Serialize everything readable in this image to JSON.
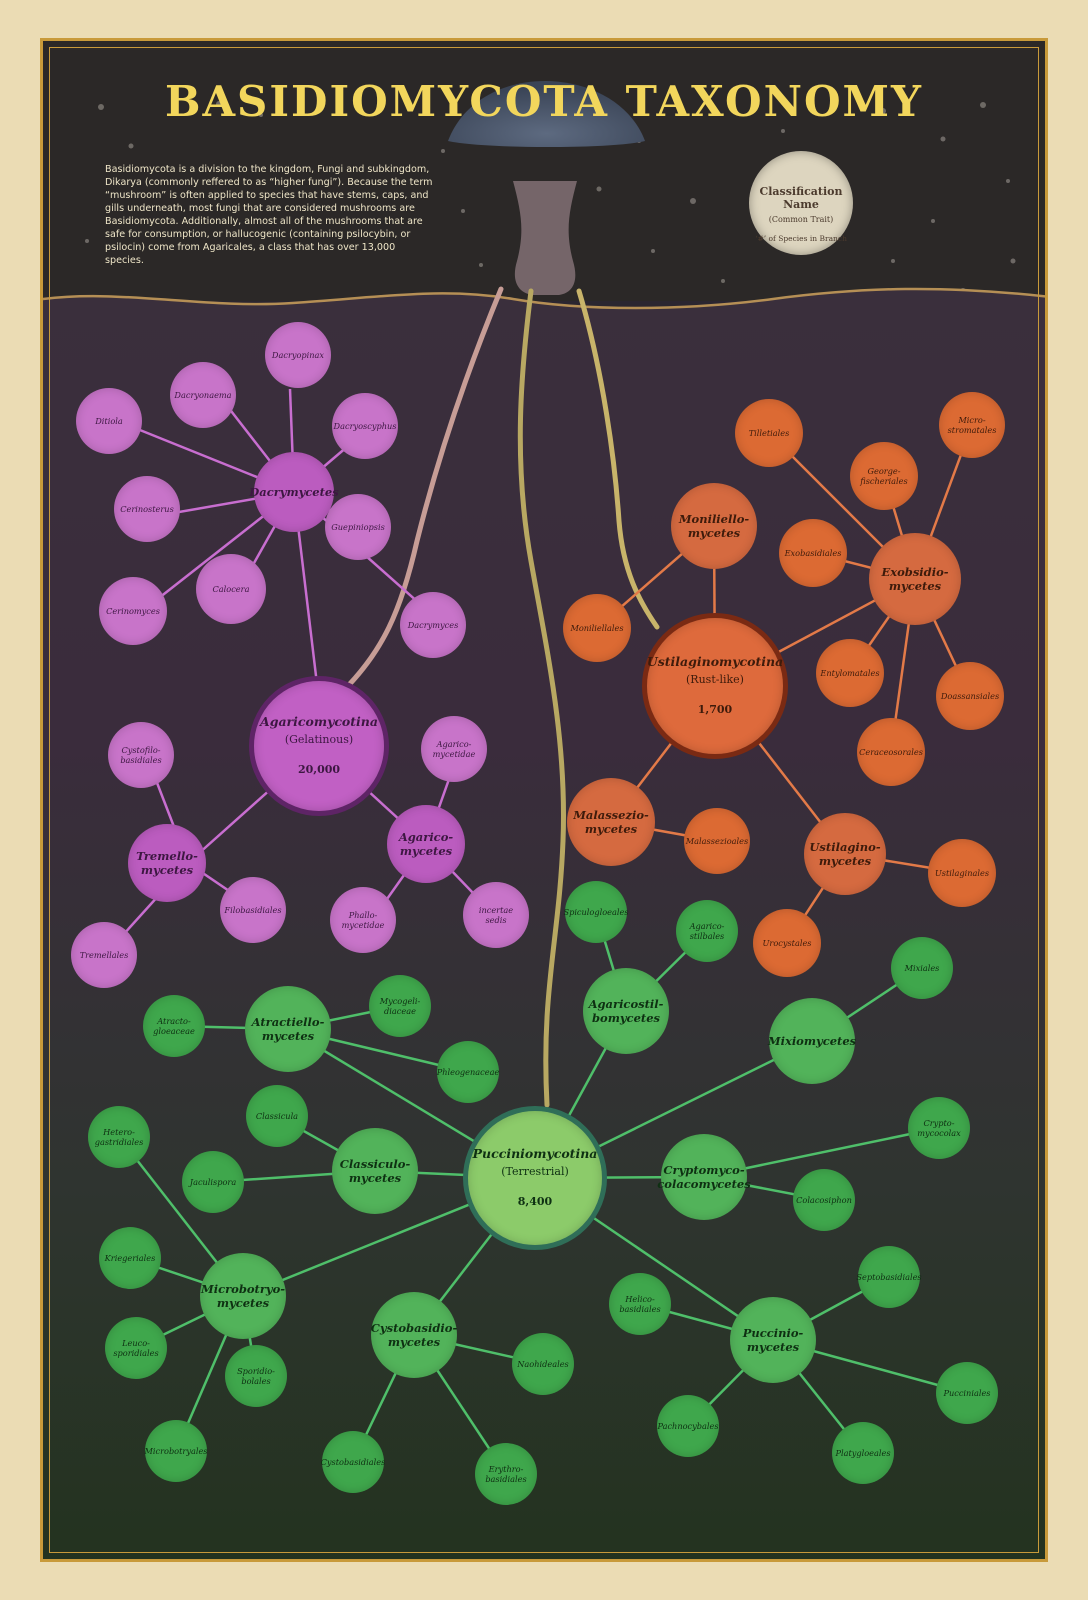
{
  "title": "BASIDIOMYCOTA TAXONOMY",
  "intro": "Basidiomycota is a division to the kingdom, Fungi and subkingdom, Dikarya (commonly reffered to as “higher fungi”).  Because the term “mushroom” is often applied to species that have stems, caps, and gills underneath, most fungi that are considered mushrooms are Basidiomycota.  Additionally, almost all of the mushrooms that are safe for consumption, or hallucogenic (containing psilocybin, or psilocin) come from Agaricales, a class that has over 13,000 species.",
  "legend": {
    "name": "Classification Name",
    "trait": "(Common Trait)",
    "species": "‘#’ of Species in Branch"
  },
  "colors": {
    "agaricomycotina": "#c160c4",
    "ustilaginomycotina": "#de6a3c",
    "pucciniomycotina": "#8ccb6a",
    "title": "#f2d65c"
  },
  "roots": {
    "agaricomycotina": {
      "name": "Agaricomycotina",
      "trait": "(Gelatinous)",
      "count": "20,000"
    },
    "ustilaginomycotina": {
      "name": "Ustilaginomycotina",
      "trait": "(Rust-like)",
      "count": "1,700"
    },
    "pucciniomycotina": {
      "name": "Pucciniomycotina",
      "trait": "(Terrestrial)",
      "count": "8,400"
    }
  },
  "agaricomycotina": {
    "classes": {
      "dacrymycetes": "Dacrymycetes",
      "tremellomycetes": "Tremello-\nmycetes",
      "agaricomycetes": "Agarico-\nmycetes"
    },
    "dacrymycetes_orders": {
      "dacryopinax": "Dacryopinax",
      "dacryonaema": "Dacryonaema",
      "ditiola": "Ditiola",
      "dacryoscyphus": "Dacryoscyphus",
      "cerinosterus": "Cerinosterus",
      "guepiniopsis": "Guepiniopsis",
      "calocera": "Calocera",
      "cerinomyces": "Cerinomyces",
      "dacrymyces": "Dacrymyces"
    },
    "tremellomycetes_orders": {
      "cystofilobasidiales": "Cystofilo-\nbasidiales",
      "filobasidiales": "Filobasidiales",
      "tremellales": "Tremellales"
    },
    "agaricomycetes_orders": {
      "agaricomycetidae": "Agarico-\nmycetidae",
      "phallomycetidae": "Phallo-\nmycetidae",
      "incertae_sedis": "incertae sedis"
    }
  },
  "ustilaginomycotina": {
    "classes": {
      "moniliellomycetes": "Moniliello-\nmycetes",
      "exobasidiomycetes": "Exobsidio-\nmycetes",
      "malasseziomycetes": "Malassezio-\nmycetes",
      "ustilaginomycetes": "Ustilagino-\nmycetes"
    },
    "moniliellomycetes_orders": {
      "moniliellales": "Moniliellales"
    },
    "exobasidiomycetes_orders": {
      "tilletiales": "Tilletiales",
      "microstromatales": "Micro-\nstromatales",
      "georgefischeriales": "George-\nfischeriales",
      "exobasidiales": "Exobasidiales",
      "entylomatales": "Entylomatales",
      "doassansiales": "Doassansiales",
      "ceraceosorales": "Ceraceosorales"
    },
    "malasseziomycetes_orders": {
      "malasseziales": "Malassezioales"
    },
    "ustilaginomycetes_orders": {
      "ustilaginales": "Ustilaginales",
      "urocystales": "Urocystales"
    }
  },
  "pucciniomycotina": {
    "classes": {
      "agaricostilbomycetes": "Agaricostil-\nbomycetes",
      "atractiellomycetes": "Atractiello-\nmycetes",
      "mixiomycetes": "Mixiomycetes",
      "classiculomycetes": "Classiculo-\nmycetes",
      "cryptomycocolacomycetes": "Cryptomyco-\ncolacomycetes",
      "microbotryomycetes": "Microbotryo-\nmycetes",
      "cystobasidiomycetes": "Cystobasidio-\nmycetes",
      "pucciniomycetes": "Puccinio-\nmycetes"
    },
    "agaricostilbomycetes_orders": {
      "spiculogloeales": "Spiculogloeales",
      "agaricostilbales": "Agarico-\nstilbales"
    },
    "atractiellomycetes_orders": {
      "atractogloeaceae": "Atracto-\ngloeaceae",
      "mycogelidiaceae": "Mycogeli-\ndiaceae",
      "phleogenaceae": "Phleogenaceae"
    },
    "mixiomycetes_orders": {
      "mixiales": "Mixiales"
    },
    "classiculomycetes_orders": {
      "classicula": "Classicula",
      "jaculispora": "Jaculispora"
    },
    "cryptomycocolacomycetes_orders": {
      "cryptomycocolax": "Crypto-\nmycocolax",
      "colacosiphon": "Colacosiphon"
    },
    "microbotryomycetes_orders": {
      "heterogastridiales": "Hetero-\ngastridiales",
      "kriegeriales": "Kriegeriales",
      "leucosporidiales": "Leuco-\nsporidiales",
      "sporidiobolales": "Sporidio-\nbolales",
      "microbotryales": "Microbotryales"
    },
    "cystobasidiomycetes_orders": {
      "naohideales": "Naohideales",
      "cystobasidiales": "Cystobasidiales",
      "erythrobasidiales": "Erythro-\nbasidiales"
    },
    "pucciniomycetes_orders": {
      "helicobasidiales": "Helico-\nbasidiales",
      "septobasidiales": "Septobasidiales",
      "pucciniales": "Pucciniales",
      "pachnocybales": "Pachnocybales",
      "platygloeales": "Platygloeales"
    }
  }
}
